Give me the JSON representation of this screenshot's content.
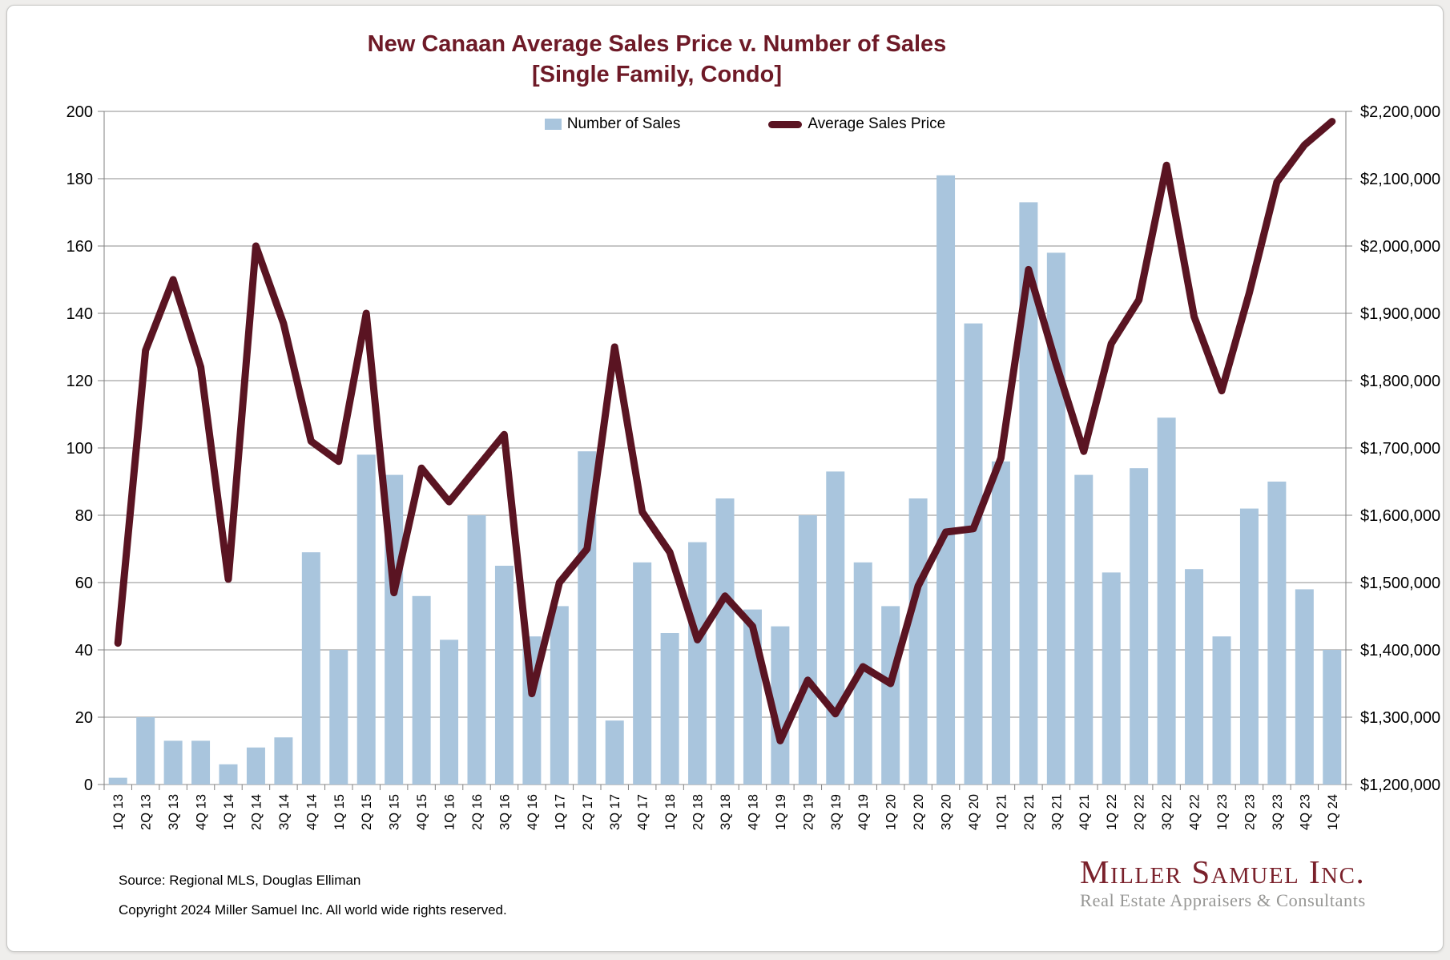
{
  "title": {
    "line1": "New Canaan Average Sales Price v. Number of Sales",
    "line2": "[Single Family, Condo]"
  },
  "legend": {
    "bar_label": "Number of Sales",
    "line_label": "Average Sales Price"
  },
  "colors": {
    "bar": "#a9c5dd",
    "line": "#5a1422",
    "title": "#6e1a27",
    "gridline": "#8c8c8c",
    "axis": "#808080",
    "logo_maroon": "#7a212b",
    "logo_gray": "#979795"
  },
  "chart_data": {
    "type": "bar",
    "subtype": "combo-bar-line",
    "title": "New Canaan Average Sales Price v. Number of Sales [Single Family, Condo]",
    "grid": true,
    "legend_position": "top-center",
    "categories": [
      "1Q 13",
      "2Q 13",
      "3Q 13",
      "4Q 13",
      "1Q 14",
      "2Q 14",
      "3Q 14",
      "4Q 14",
      "1Q 15",
      "2Q 15",
      "3Q 15",
      "4Q 15",
      "1Q 16",
      "2Q 16",
      "3Q 16",
      "4Q 16",
      "1Q 17",
      "2Q 17",
      "3Q 17",
      "4Q 17",
      "1Q 18",
      "2Q 18",
      "3Q 18",
      "4Q 18",
      "1Q 19",
      "2Q 19",
      "3Q 19",
      "4Q 19",
      "1Q 20",
      "2Q 20",
      "3Q 20",
      "4Q 20",
      "1Q 21",
      "2Q 21",
      "3Q 21",
      "4Q 21",
      "1Q 22",
      "2Q 22",
      "3Q 22",
      "4Q 22",
      "1Q 23",
      "2Q 23",
      "3Q 23",
      "4Q 23",
      "1Q 24"
    ],
    "series": [
      {
        "name": "Number of Sales",
        "type": "bar",
        "axis": "left",
        "values": [
          2,
          20,
          13,
          13,
          6,
          11,
          14,
          69,
          40,
          98,
          92,
          56,
          43,
          80,
          65,
          44,
          53,
          99,
          19,
          66,
          45,
          72,
          85,
          52,
          47,
          80,
          93,
          66,
          53,
          85,
          181,
          137,
          96,
          173,
          158,
          92,
          63,
          94,
          109,
          64,
          44,
          82,
          90,
          58,
          40
        ]
      },
      {
        "name": "Average Sales Price",
        "type": "line",
        "axis": "right",
        "values": [
          1410000,
          1845000,
          1950000,
          1820000,
          1505000,
          2000000,
          1885000,
          1710000,
          1680000,
          1900000,
          1485000,
          1670000,
          1620000,
          1670000,
          1720000,
          1335000,
          1500000,
          1550000,
          1850000,
          1605000,
          1545000,
          1415000,
          1480000,
          1435000,
          1265000,
          1355000,
          1305000,
          1375000,
          1350000,
          1495000,
          1575000,
          1580000,
          1685000,
          1965000,
          1825000,
          1695000,
          1855000,
          1920000,
          2120000,
          1895000,
          1785000,
          1930000,
          2095000,
          2150000,
          2185000
        ]
      }
    ],
    "left_axis": {
      "min": 0,
      "max": 200,
      "step": 20,
      "tick_labels": [
        "0",
        "20",
        "40",
        "60",
        "80",
        "100",
        "120",
        "140",
        "160",
        "180",
        "200"
      ]
    },
    "right_axis": {
      "min": 1200000,
      "max": 2200000,
      "step": 100000,
      "tick_labels": [
        "$1,200,000",
        "$1,300,000",
        "$1,400,000",
        "$1,500,000",
        "$1,600,000",
        "$1,700,000",
        "$1,800,000",
        "$1,900,000",
        "$2,000,000",
        "$2,100,000",
        "$2,200,000"
      ]
    }
  },
  "footer": {
    "source": "Source: Regional MLS, Douglas Elliman",
    "copyright": "Copyright 2024 Miller Samuel Inc.  All world wide rights reserved."
  },
  "logo": {
    "name": "Miller Samuel Inc.",
    "tagline": "Real Estate Appraisers & Consultants"
  }
}
